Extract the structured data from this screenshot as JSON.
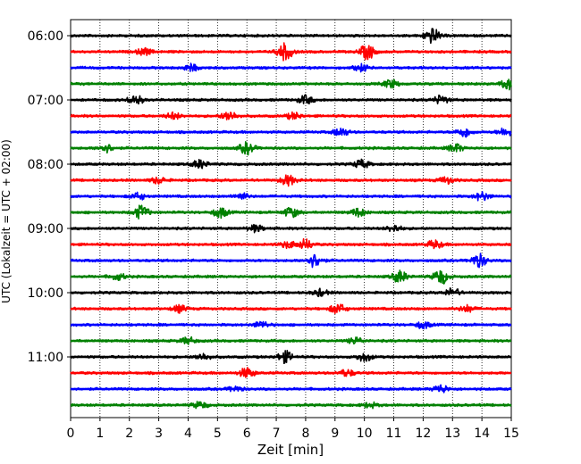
{
  "chart_data": {
    "type": "line",
    "title": "",
    "xlabel": "Zeit  [min]",
    "ylabel": "UTC (Lokalzeit = UTC + 02:00)",
    "xlim": [
      0,
      15
    ],
    "x_ticks": [
      0,
      1,
      2,
      3,
      4,
      5,
      6,
      7,
      8,
      9,
      10,
      11,
      12,
      13,
      14,
      15
    ],
    "x_tick_labels": [
      "0",
      "1",
      "2",
      "3",
      "4",
      "5",
      "6",
      "7",
      "8",
      "9",
      "10",
      "11",
      "12",
      "13",
      "14",
      "15"
    ],
    "y_tick_labels": [
      "06:00",
      "07:00",
      "08:00",
      "09:00",
      "10:00",
      "11:00"
    ],
    "grid_x": true,
    "trace_interval_minutes": 15,
    "trace_count": 24,
    "trace_colors": [
      "#000000",
      "#ff0000",
      "#0000ff",
      "#008000"
    ],
    "legend": "none",
    "series": [
      {
        "index": 0,
        "bursts": [
          [
            12.3,
            0.9
          ]
        ]
      },
      {
        "index": 1,
        "bursts": [
          [
            7.3,
            1.0
          ],
          [
            10.1,
            0.9
          ],
          [
            2.5,
            0.4
          ]
        ]
      },
      {
        "index": 2,
        "bursts": [
          [
            4.1,
            0.4
          ],
          [
            9.9,
            0.4
          ]
        ]
      },
      {
        "index": 3,
        "bursts": [
          [
            10.9,
            0.5
          ],
          [
            14.9,
            0.6
          ]
        ]
      },
      {
        "index": 4,
        "bursts": [
          [
            2.2,
            0.6
          ],
          [
            8.0,
            0.5
          ],
          [
            12.6,
            0.5
          ]
        ]
      },
      {
        "index": 5,
        "bursts": [
          [
            5.4,
            0.6
          ],
          [
            3.5,
            0.4
          ],
          [
            7.6,
            0.4
          ]
        ]
      },
      {
        "index": 6,
        "bursts": [
          [
            9.2,
            0.5
          ],
          [
            13.4,
            0.6
          ],
          [
            14.8,
            0.5
          ]
        ]
      },
      {
        "index": 7,
        "bursts": [
          [
            6.0,
            0.7
          ],
          [
            1.2,
            0.5
          ],
          [
            13.1,
            0.5
          ]
        ]
      },
      {
        "index": 8,
        "bursts": [
          [
            4.4,
            0.5
          ],
          [
            9.9,
            0.5
          ]
        ]
      },
      {
        "index": 9,
        "bursts": [
          [
            7.4,
            0.6
          ],
          [
            3.0,
            0.4
          ],
          [
            12.8,
            0.4
          ]
        ]
      },
      {
        "index": 10,
        "bursts": [
          [
            14.0,
            0.5
          ],
          [
            2.3,
            0.4
          ],
          [
            5.8,
            0.4
          ]
        ]
      },
      {
        "index": 11,
        "bursts": [
          [
            2.4,
            0.8
          ],
          [
            5.1,
            0.6
          ],
          [
            7.5,
            0.6
          ],
          [
            9.8,
            0.5
          ]
        ]
      },
      {
        "index": 12,
        "bursts": [
          [
            6.3,
            0.4
          ],
          [
            11.0,
            0.4
          ]
        ]
      },
      {
        "index": 13,
        "bursts": [
          [
            8.0,
            0.6
          ],
          [
            12.4,
            0.5
          ],
          [
            7.4,
            0.4
          ]
        ]
      },
      {
        "index": 14,
        "bursts": [
          [
            8.3,
            0.8
          ],
          [
            13.9,
            0.8
          ]
        ]
      },
      {
        "index": 15,
        "bursts": [
          [
            11.2,
            0.7
          ],
          [
            12.6,
            0.9
          ],
          [
            1.6,
            0.4
          ]
        ]
      },
      {
        "index": 16,
        "bursts": [
          [
            8.5,
            0.4
          ],
          [
            13.0,
            0.5
          ]
        ]
      },
      {
        "index": 17,
        "bursts": [
          [
            9.1,
            0.6
          ],
          [
            3.7,
            0.4
          ],
          [
            13.5,
            0.4
          ]
        ]
      },
      {
        "index": 18,
        "bursts": [
          [
            6.5,
            0.4
          ],
          [
            12.0,
            0.4
          ]
        ]
      },
      {
        "index": 19,
        "bursts": [
          [
            4.0,
            0.4
          ],
          [
            9.7,
            0.4
          ]
        ]
      },
      {
        "index": 20,
        "bursts": [
          [
            7.3,
            0.7
          ],
          [
            10.0,
            0.5
          ],
          [
            4.5,
            0.4
          ]
        ]
      },
      {
        "index": 21,
        "bursts": [
          [
            6.0,
            0.6
          ],
          [
            9.4,
            0.4
          ]
        ]
      },
      {
        "index": 22,
        "bursts": [
          [
            12.6,
            0.5
          ],
          [
            5.6,
            0.3
          ]
        ]
      },
      {
        "index": 23,
        "bursts": [
          [
            4.4,
            0.4
          ],
          [
            10.2,
            0.3
          ]
        ]
      }
    ]
  }
}
